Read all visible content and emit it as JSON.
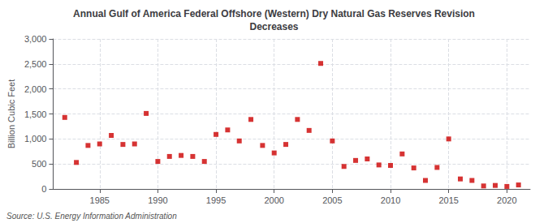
{
  "chart_data": {
    "type": "scatter",
    "title": "Annual Gulf of America Federal Offshore (Western) Dry Natural Gas Reserves Revision\nDecreases",
    "ylabel": "Billion Cubic Feet",
    "source": "Source: U.S. Energy Information Administration",
    "x": [
      1982,
      1983,
      1984,
      1985,
      1986,
      1987,
      1988,
      1989,
      1990,
      1991,
      1992,
      1993,
      1994,
      1995,
      1996,
      1997,
      1998,
      1999,
      2000,
      2001,
      2002,
      2003,
      2004,
      2005,
      2006,
      2007,
      2008,
      2009,
      2010,
      2011,
      2012,
      2013,
      2014,
      2015,
      2016,
      2017,
      2018,
      2019,
      2020,
      2021
    ],
    "values": [
      1430,
      530,
      870,
      900,
      1070,
      890,
      900,
      1510,
      550,
      650,
      670,
      650,
      550,
      1090,
      1180,
      960,
      1390,
      870,
      720,
      890,
      1390,
      1170,
      2510,
      960,
      450,
      570,
      600,
      480,
      470,
      700,
      420,
      170,
      430,
      1000,
      200,
      170,
      60,
      70,
      50,
      80
    ],
    "color": "#cc0000",
    "marker": "square",
    "xlim": [
      1981,
      2022
    ],
    "xticks": [
      1985,
      1990,
      1995,
      2000,
      2005,
      2010,
      2015,
      2020
    ],
    "ylim": [
      0,
      3000
    ],
    "yticks": [
      0,
      500,
      {
        "value": 1000,
        "label": "1,000"
      },
      {
        "value": 1500,
        "label": "1,500"
      },
      {
        "value": 2000,
        "label": "2,000"
      },
      {
        "value": 2500,
        "label": "2,500"
      },
      {
        "value": 3000,
        "label": "3,000"
      }
    ],
    "grid": true
  }
}
